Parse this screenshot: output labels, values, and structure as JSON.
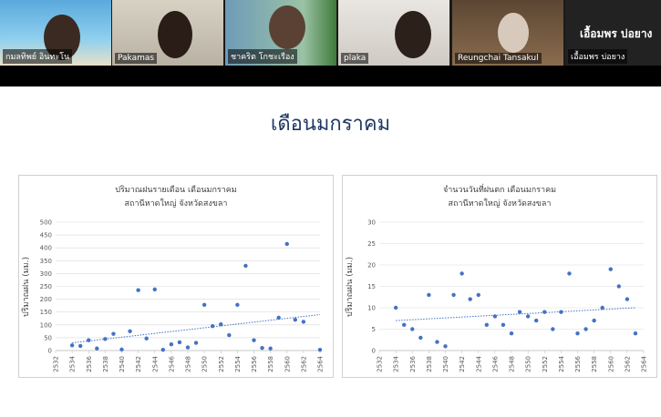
{
  "participants": [
    "กมลทิพย์ อินทะโน",
    "Pakamas",
    "ชาคริต โกชะเรือง",
    "plaka",
    "Reungchai Tansakul",
    "เอื้อมพร บ่อยาง"
  ],
  "active_speaker": "เอื้อมพร บ่อยาง",
  "slide_title": "เดือนมกราคม",
  "chart_data": [
    {
      "type": "scatter",
      "title": "ปริมาณฝนรายเดือน เดือนมกราคม",
      "subtitle": "สถานีหาดใหญ่ จังหวัดสงขลา",
      "y_label": "ปริมาณฝน (มม.)",
      "color": "#4472c4",
      "grid": true,
      "x": [
        2534,
        2535,
        2536,
        2537,
        2538,
        2539,
        2540,
        2541,
        2542,
        2543,
        2544,
        2545,
        2546,
        2547,
        2548,
        2549,
        2550,
        2551,
        2552,
        2553,
        2554,
        2555,
        2556,
        2557,
        2558,
        2559,
        2560,
        2561,
        2562,
        2564
      ],
      "values": [
        20,
        18,
        40,
        8,
        45,
        65,
        4,
        75,
        235,
        47,
        238,
        3,
        24,
        32,
        12,
        30,
        178,
        95,
        102,
        60,
        178,
        330,
        40,
        10,
        8,
        128,
        415,
        120,
        112,
        3
      ],
      "trendline": {
        "x": [
          2534,
          2564
        ],
        "values": [
          30,
          140
        ]
      },
      "xlim": [
        2532,
        2564
      ],
      "xticks": [
        2532,
        2534,
        2536,
        2538,
        2540,
        2542,
        2544,
        2546,
        2548,
        2550,
        2552,
        2554,
        2556,
        2558,
        2560,
        2562,
        2564
      ],
      "ylim": [
        0,
        500
      ],
      "yticks": [
        0,
        50,
        100,
        150,
        200,
        250,
        300,
        350,
        400,
        450,
        500
      ]
    },
    {
      "type": "scatter",
      "title": "จำนวนวันที่ฝนตก เดือนมกราคม",
      "subtitle": "สถานีหาดใหญ่ จังหวัดสงขลา",
      "y_label": "ปริมาณฝน (มม.)",
      "color": "#4472c4",
      "grid": true,
      "x": [
        2534,
        2535,
        2536,
        2537,
        2538,
        2539,
        2540,
        2541,
        2542,
        2543,
        2544,
        2545,
        2546,
        2547,
        2548,
        2549,
        2550,
        2551,
        2552,
        2553,
        2554,
        2555,
        2556,
        2557,
        2558,
        2559,
        2560,
        2561,
        2562,
        2563
      ],
      "values": [
        10,
        6,
        5,
        3,
        13,
        2,
        1,
        13,
        18,
        12,
        13,
        6,
        8,
        6,
        4,
        9,
        8,
        7,
        9,
        5,
        9,
        18,
        4,
        5,
        7,
        10,
        19,
        15,
        12,
        4
      ],
      "trendline": {
        "x": [
          2534,
          2563
        ],
        "values": [
          7,
          10
        ]
      },
      "xlim": [
        2532,
        2564
      ],
      "xticks": [
        2532,
        2534,
        2536,
        2538,
        2540,
        2542,
        2544,
        2546,
        2548,
        2550,
        2552,
        2554,
        2556,
        2558,
        2560,
        2562,
        2564
      ],
      "ylim": [
        0,
        30
      ],
      "yticks": [
        0,
        5,
        10,
        15,
        20,
        25,
        30
      ]
    }
  ]
}
